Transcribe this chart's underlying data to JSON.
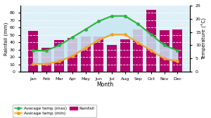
{
  "months": [
    "Jan",
    "Feb",
    "Mar",
    "Apr",
    "May",
    "Jun",
    "Jul",
    "Aug",
    "Sep",
    "Oct",
    "Nov",
    "Dec"
  ],
  "rainfall": [
    55,
    33,
    43,
    46,
    48,
    48,
    36,
    44,
    57,
    84,
    56,
    57
  ],
  "temp_max": [
    8,
    8,
    10,
    13,
    16,
    19,
    21,
    21,
    18,
    14,
    10,
    8
  ],
  "temp_min": [
    3,
    3,
    4,
    6,
    9,
    12,
    14,
    14,
    11,
    8,
    5,
    4
  ],
  "bar_color": "#b5006e",
  "line_max_color": "#2db33e",
  "line_min_color": "#f5a020",
  "fill_color": "#c8e6f0",
  "bg_color": "#dff0f7",
  "ylabel_left": "Rainfall (mm)",
  "ylabel_right": "Temperature (°C)",
  "xlabel": "Month",
  "ylim_rain": [
    0,
    90
  ],
  "ylim_temp": [
    0,
    25
  ],
  "yticks_rain": [
    0,
    10,
    20,
    30,
    40,
    50,
    60,
    70,
    80
  ],
  "yticks_temp": [
    0,
    5,
    10,
    15,
    20,
    25
  ],
  "legend_items": [
    "Average temp (max)",
    "Average temp (min)",
    "Rainfall"
  ]
}
